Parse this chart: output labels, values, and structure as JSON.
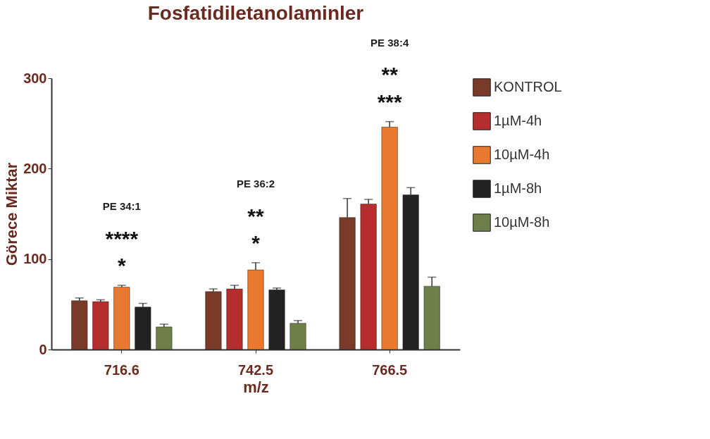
{
  "chart_data": {
    "type": "bar",
    "title": "Fosfatidiletanolaminler",
    "xlabel": "m/z",
    "ylabel": "Görece Miktar",
    "categories": [
      "716.6",
      "742.5",
      "766.5"
    ],
    "series": [
      {
        "name": "KONTROL",
        "color": "#7a3a28",
        "values": [
          54,
          64,
          146
        ],
        "errors": [
          3,
          3,
          21
        ]
      },
      {
        "name": "1µM-4h",
        "color": "#b52d2d",
        "values": [
          53,
          67,
          161
        ],
        "errors": [
          2,
          4,
          5
        ]
      },
      {
        "name": "10µM-4h",
        "color": "#e8792e",
        "values": [
          69,
          88,
          246
        ],
        "errors": [
          2,
          8,
          6
        ]
      },
      {
        "name": "1µM-8h",
        "color": "#222222",
        "values": [
          47,
          66,
          171
        ],
        "errors": [
          4,
          2,
          8
        ]
      },
      {
        "name": "10µM-8h",
        "color": "#6e7f4a",
        "values": [
          25,
          29,
          70
        ],
        "errors": [
          3,
          3,
          10
        ]
      }
    ],
    "ylim": [
      0,
      300
    ],
    "yticks": [
      0,
      100,
      200,
      300
    ],
    "grid": false,
    "legend": "right",
    "annotations": [
      "PE 34:1",
      "****",
      "*",
      "PE 36:2",
      "**",
      "*",
      "PE 38:4",
      "**",
      "***"
    ]
  }
}
